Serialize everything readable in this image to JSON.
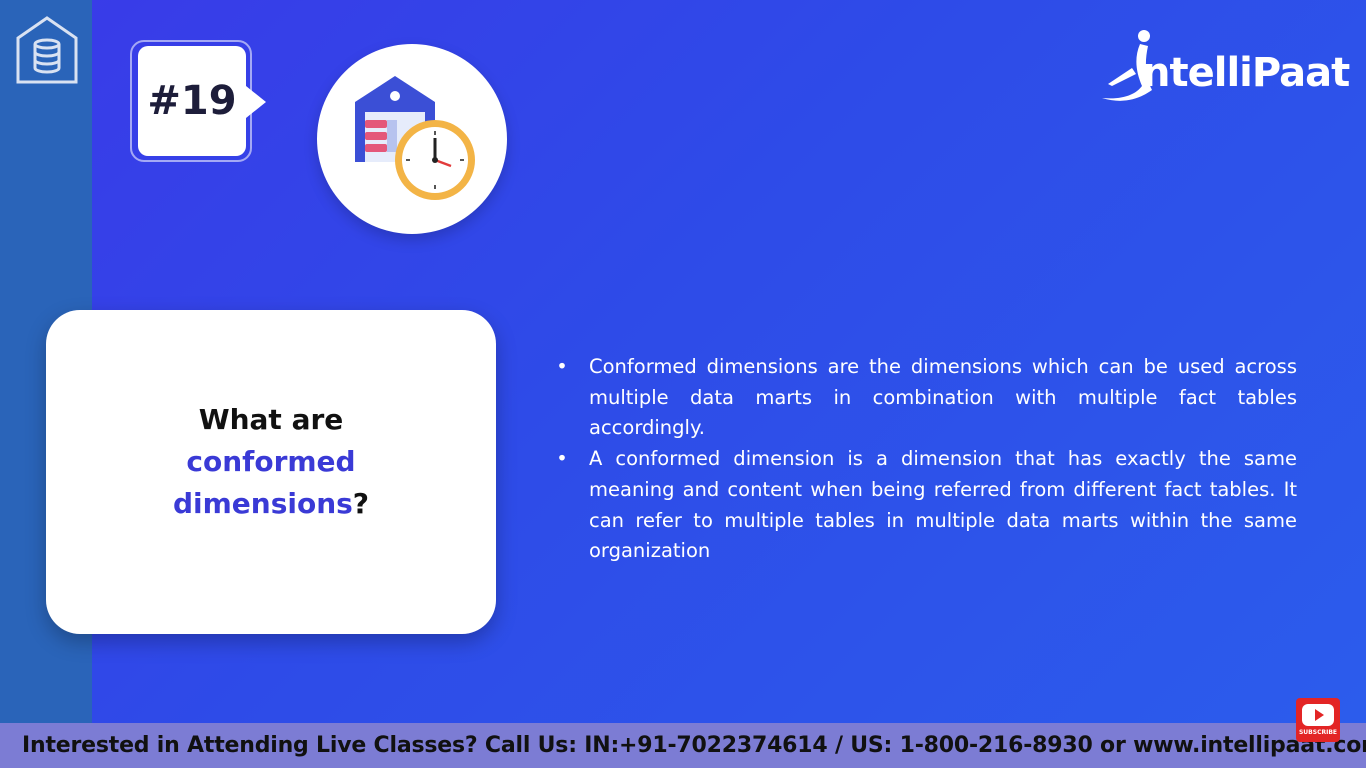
{
  "badge": {
    "number": "#19"
  },
  "brand": {
    "logo_text": "ntelliPaat",
    "accent_color": "#3a3ad6"
  },
  "question": {
    "prefix": "What are ",
    "highlight": "conformed dimensions",
    "suffix": "?"
  },
  "answer": {
    "bullet_symbol": "•",
    "points": [
      "Conformed dimensions are the dimensions which can be used across multiple data marts in combination with multiple fact tables accordingly.",
      "A conformed dimension is a dimension that has exactly the same meaning and content when being referred from different fact tables. It can refer to multiple tables in multiple data marts within the same organization"
    ]
  },
  "footer": {
    "text": "Interested in Attending Live Classes? Call Us: IN:+91-7022374614 / US: 1-800-216-8930 or www.intellipaat.com"
  },
  "youtube": {
    "label": "SUBSCRIBE"
  },
  "icons": [
    "database-icon",
    "warehouse-clock-icon",
    "intellipaat-logo-icon",
    "youtube-subscribe-icon"
  ]
}
